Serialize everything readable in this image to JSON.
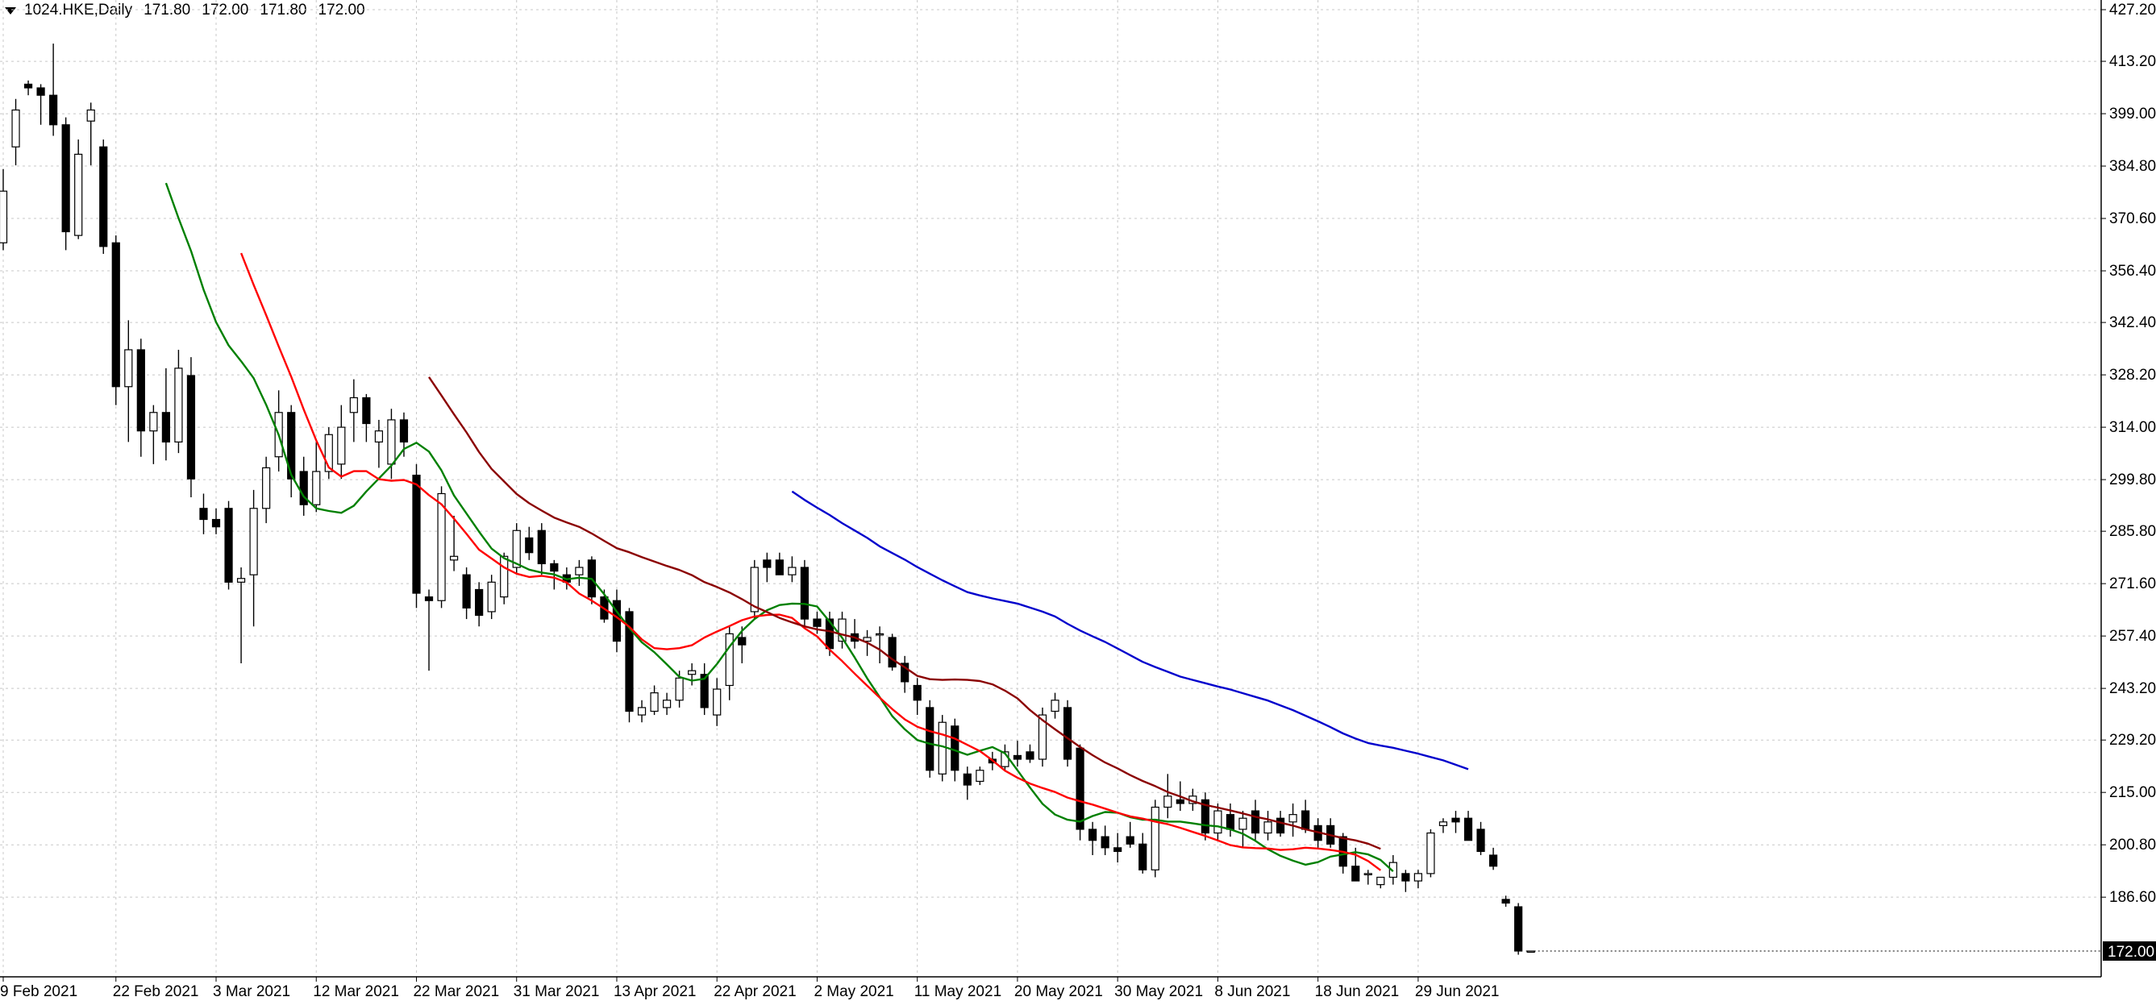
{
  "header": {
    "symbol": "1024.HKE,Daily",
    "open": "171.80",
    "high": "172.00",
    "low": "171.80",
    "close": "172.00"
  },
  "colors": {
    "bull_body": "#ffffff",
    "bear_body": "#000000",
    "candle_outline": "#000000",
    "grid": "#c8c8c8",
    "ma_green": "#008000",
    "ma_red": "#ff0000",
    "ma_darkred": "#8b0000",
    "ma_blue": "#0000cc",
    "price_badge_bg": "#000000",
    "price_badge_text": "#ffffff"
  },
  "chart_data": {
    "type": "candlestick",
    "y_range": [
      165.0,
      427.2
    ],
    "y_ticks": [
      "427.20",
      "413.20",
      "399.00",
      "384.80",
      "370.60",
      "356.40",
      "342.40",
      "328.20",
      "314.00",
      "299.80",
      "285.80",
      "271.60",
      "257.40",
      "243.20",
      "229.20",
      "215.00",
      "200.80",
      "186.60"
    ],
    "x_tick_labels": [
      {
        "index": 0,
        "label": "9 Feb 2021"
      },
      {
        "index": 9,
        "label": "22 Feb 2021"
      },
      {
        "index": 17,
        "label": "3 Mar 2021"
      },
      {
        "index": 25,
        "label": "12 Mar 2021"
      },
      {
        "index": 33,
        "label": "22 Mar 2021"
      },
      {
        "index": 41,
        "label": "31 Mar 2021"
      },
      {
        "index": 49,
        "label": "13 Apr 2021"
      },
      {
        "index": 57,
        "label": "22 Apr 2021"
      },
      {
        "index": 65,
        "label": "2 May 2021"
      },
      {
        "index": 73,
        "label": "11 May 2021"
      },
      {
        "index": 81,
        "label": "20 May 2021"
      },
      {
        "index": 89,
        "label": "30 May 2021"
      },
      {
        "index": 97,
        "label": "8 Jun 2021"
      },
      {
        "index": 105,
        "label": "18 Jun 2021"
      },
      {
        "index": 113,
        "label": "29 Jun 2021"
      }
    ],
    "last_price": "172.00",
    "last_price_value": 172.0,
    "candles": [
      [
        364.0,
        384.0,
        362.0,
        378.0
      ],
      [
        390.0,
        403.0,
        385.0,
        400.0
      ],
      [
        407.0,
        408.0,
        404.0,
        406.0
      ],
      [
        406.0,
        407.0,
        396.0,
        404.0
      ],
      [
        404.0,
        418.0,
        393.0,
        396.0
      ],
      [
        396.0,
        398.0,
        362.0,
        367.0
      ],
      [
        366.0,
        392.0,
        365.0,
        388.0
      ],
      [
        397.0,
        402.0,
        385.0,
        400.0
      ],
      [
        390.0,
        392.0,
        361.0,
        363.0
      ],
      [
        364.0,
        366.0,
        320.0,
        325.0
      ],
      [
        325.0,
        343.0,
        310.0,
        335.0
      ],
      [
        335.0,
        338.0,
        306.0,
        313.0
      ],
      [
        313.0,
        320.0,
        304.0,
        318.0
      ],
      [
        318.0,
        330.0,
        305.0,
        310.0
      ],
      [
        310.0,
        335.0,
        307.0,
        330.0
      ],
      [
        328.0,
        333.0,
        295.0,
        300.0
      ],
      [
        292.0,
        296.0,
        285.0,
        289.0
      ],
      [
        289.0,
        292.0,
        285.0,
        287.0
      ],
      [
        292.0,
        294.0,
        270.0,
        272.0
      ],
      [
        272.0,
        276.0,
        250.0,
        273.0
      ],
      [
        274.0,
        297.0,
        260.0,
        292.0
      ],
      [
        292.0,
        306.0,
        288.0,
        303.0
      ],
      [
        306.0,
        324.0,
        302.0,
        318.0
      ],
      [
        318.0,
        320.0,
        295.0,
        300.0
      ],
      [
        302.0,
        306.0,
        290.0,
        293.0
      ],
      [
        293.0,
        310.0,
        291.0,
        302.0
      ],
      [
        302.0,
        314.0,
        300.0,
        312.0
      ],
      [
        304.0,
        320.0,
        300.0,
        314.0
      ],
      [
        318.0,
        327.0,
        310.0,
        322.0
      ],
      [
        322.0,
        323.0,
        310.0,
        315.0
      ],
      [
        310.0,
        316.0,
        303.0,
        313.0
      ],
      [
        304.0,
        319.0,
        300.0,
        316.0
      ],
      [
        316.0,
        318.0,
        306.0,
        310.0
      ],
      [
        301.0,
        304.0,
        265.0,
        269.0
      ],
      [
        268.0,
        270.0,
        248.0,
        267.0
      ],
      [
        267.0,
        298.0,
        265.0,
        296.0
      ],
      [
        278.0,
        290.0,
        275.0,
        279.0
      ],
      [
        274.0,
        276.0,
        262.0,
        265.0
      ],
      [
        270.0,
        272.0,
        260.0,
        263.0
      ],
      [
        264.0,
        274.0,
        262.0,
        272.0
      ],
      [
        268.0,
        280.0,
        266.0,
        279.0
      ],
      [
        276.0,
        288.0,
        274.0,
        286.0
      ],
      [
        284.0,
        287.0,
        278.0,
        280.0
      ],
      [
        286.0,
        288.0,
        274.0,
        277.0
      ],
      [
        277.0,
        278.0,
        270.0,
        275.0
      ],
      [
        274.0,
        276.0,
        270.0,
        272.0
      ],
      [
        274.0,
        278.0,
        271.0,
        276.0
      ],
      [
        278.0,
        279.0,
        266.0,
        268.0
      ],
      [
        268.0,
        270.0,
        261.0,
        262.0
      ],
      [
        267.0,
        270.0,
        253.0,
        256.0
      ],
      [
        264.0,
        265.0,
        234.0,
        237.0
      ],
      [
        236.0,
        240.0,
        234.0,
        238.0
      ],
      [
        237.0,
        244.0,
        236.0,
        242.0
      ],
      [
        238.0,
        242.0,
        236.0,
        240.0
      ],
      [
        240.0,
        248.0,
        238.0,
        246.0
      ],
      [
        247.0,
        250.0,
        244.0,
        248.0
      ],
      [
        247.0,
        250.0,
        236.0,
        238.0
      ],
      [
        236.0,
        246.0,
        233.0,
        243.0
      ],
      [
        244.0,
        260.0,
        240.0,
        258.0
      ],
      [
        257.0,
        260.0,
        250.0,
        255.0
      ],
      [
        264.0,
        278.0,
        262.0,
        276.0
      ],
      [
        278.0,
        280.0,
        272.0,
        276.0
      ],
      [
        278.0,
        280.0,
        274.0,
        274.0
      ],
      [
        274.0,
        279.0,
        272.0,
        276.0
      ],
      [
        276.0,
        278.0,
        260.0,
        262.0
      ],
      [
        262.0,
        264.0,
        258.0,
        260.0
      ],
      [
        262.0,
        264.0,
        252.0,
        254.0
      ],
      [
        256.0,
        264.0,
        254.0,
        262.0
      ],
      [
        258.0,
        262.0,
        254.0,
        256.0
      ],
      [
        256.0,
        259.0,
        252.0,
        257.0
      ],
      [
        258.0,
        260.0,
        250.0,
        258.0
      ],
      [
        257.0,
        258.0,
        248.0,
        249.0
      ],
      [
        250.0,
        252.0,
        242.0,
        245.0
      ],
      [
        244.0,
        246.0,
        236.0,
        240.0
      ],
      [
        238.0,
        240.0,
        219.0,
        221.0
      ],
      [
        220.0,
        236.0,
        218.0,
        234.0
      ],
      [
        233.0,
        235.0,
        218.0,
        221.0
      ],
      [
        220.0,
        222.0,
        213.0,
        217.0
      ],
      [
        218.0,
        222.0,
        217.0,
        221.0
      ],
      [
        224.0,
        226.0,
        221.0,
        223.0
      ],
      [
        222.0,
        228.0,
        221.0,
        226.0
      ],
      [
        225.0,
        229.0,
        222.0,
        224.0
      ],
      [
        226.0,
        228.0,
        223.0,
        224.0
      ],
      [
        224.0,
        238.0,
        222.0,
        236.0
      ],
      [
        237.0,
        242.0,
        235.0,
        240.0
      ],
      [
        238.0,
        240.0,
        222.0,
        224.0
      ],
      [
        227.0,
        228.0,
        202.0,
        205.0
      ],
      [
        205.0,
        207.0,
        198.0,
        202.0
      ],
      [
        203.0,
        206.0,
        198.0,
        200.0
      ],
      [
        200.0,
        204.0,
        196.0,
        199.0
      ],
      [
        203.0,
        207.0,
        200.0,
        201.0
      ],
      [
        201.0,
        204.0,
        193.0,
        194.0
      ],
      [
        194.0,
        213.0,
        192.0,
        211.0
      ],
      [
        211.0,
        220.0,
        208.0,
        214.0
      ],
      [
        213.0,
        218.0,
        210.0,
        212.0
      ],
      [
        212.0,
        216.0,
        210.0,
        214.0
      ],
      [
        213.0,
        215.0,
        202.0,
        204.0
      ],
      [
        204.0,
        212.0,
        202.0,
        210.0
      ],
      [
        209.0,
        212.0,
        203.0,
        205.0
      ],
      [
        205.0,
        210.0,
        200.0,
        208.0
      ],
      [
        210.0,
        213.0,
        202.0,
        204.0
      ],
      [
        204.0,
        210.0,
        202.0,
        207.0
      ],
      [
        208.0,
        210.0,
        203.0,
        204.0
      ],
      [
        207.0,
        212.0,
        203.0,
        209.0
      ],
      [
        210.0,
        213.0,
        204.0,
        205.0
      ],
      [
        206.0,
        208.0,
        200.0,
        202.0
      ],
      [
        206.0,
        208.0,
        200.0,
        201.0
      ],
      [
        203.0,
        204.0,
        193.0,
        195.0
      ],
      [
        195.0,
        200.0,
        191.0,
        191.0
      ],
      [
        193.0,
        194.0,
        190.0,
        193.0
      ],
      [
        190.0,
        192.0,
        189.0,
        192.0
      ],
      [
        192.0,
        198.0,
        190.0,
        196.0
      ],
      [
        193.0,
        194.0,
        188.0,
        191.0
      ],
      [
        191.0,
        194.0,
        189.0,
        193.0
      ],
      [
        193.0,
        205.0,
        192.0,
        204.0
      ],
      [
        206.0,
        208.0,
        204.0,
        207.0
      ],
      [
        208.0,
        210.0,
        204.0,
        207.0
      ],
      [
        208.0,
        210.0,
        202.0,
        202.0
      ],
      [
        205.0,
        207.0,
        198.0,
        199.0
      ],
      [
        198.0,
        200.0,
        194.0,
        195.0
      ],
      [
        186.0,
        187.0,
        184.0,
        185.0
      ],
      [
        184.0,
        185.0,
        171.0,
        172.0
      ],
      [
        171.8,
        172.0,
        171.8,
        172.0
      ]
    ],
    "series": [
      {
        "color": "#008000",
        "start_index": 13,
        "values": [
          380.2,
          370.7,
          361.8,
          351.3,
          342.5,
          336.2,
          331.9,
          327.3,
          320.1,
          311.9,
          301.1,
          295.2,
          292.0,
          291.3,
          290.8,
          292.7,
          296.6,
          300.1,
          303.6,
          308.1,
          309.8,
          307.4,
          302.3,
          295.5,
          290.6,
          285.7,
          281.1,
          278.5,
          277.0,
          275.4,
          274.6,
          274.1,
          272.8,
          273.2,
          272.9,
          268.7,
          264.0,
          259.6,
          255.7,
          253.0,
          249.7,
          246.3,
          245.3,
          245.8,
          249.8,
          254.5,
          258.8,
          262.0,
          264.4,
          265.8,
          266.2,
          266.1,
          265.4,
          261.3,
          256.9,
          251.6,
          245.9,
          240.8,
          235.7,
          232.1,
          229.2,
          228.2,
          227.5,
          226.4,
          225.2,
          226.3,
          227.3,
          225.6,
          221.0,
          216.3,
          211.9,
          209.0,
          207.6,
          207.1,
          208.6,
          209.7,
          209.5,
          208.3,
          207.6,
          207.6,
          207.1,
          207.1,
          206.6,
          206.1,
          205.8,
          205.0,
          203.8,
          201.9,
          199.6,
          197.8,
          196.5,
          195.4,
          196.1,
          197.6,
          198.2,
          198.8,
          198.2,
          196.7,
          193.6
        ]
      },
      {
        "color": "#ff0000",
        "start_index": 19,
        "values": [
          361.2,
          352.6,
          344.4,
          335.9,
          327.7,
          318.8,
          310.4,
          303.1,
          300.6,
          302.1,
          302.1,
          299.9,
          299.5,
          299.7,
          298.5,
          295.6,
          293.1,
          289.2,
          285.1,
          280.8,
          278.4,
          276.0,
          274.3,
          273.4,
          273.7,
          273.2,
          271.9,
          268.9,
          267.0,
          264.8,
          262.5,
          259.9,
          256.5,
          254.1,
          253.8,
          254.1,
          254.9,
          257.0,
          258.6,
          260.1,
          261.7,
          262.7,
          263.1,
          263.2,
          262.3,
          259.5,
          257.3,
          253.7,
          250.6,
          247.2,
          243.9,
          240.7,
          237.6,
          234.8,
          232.8,
          231.6,
          230.7,
          229.6,
          227.9,
          226.2,
          223.7,
          220.9,
          219.0,
          217.4,
          216.2,
          215.1,
          213.6,
          212.6,
          211.7,
          210.6,
          209.5,
          208.5,
          207.9,
          207.1,
          206.4,
          205.4,
          204.3,
          203.2,
          202.0,
          200.7,
          200.1,
          199.9,
          199.8,
          199.4,
          199.6,
          200.0,
          199.8,
          199.4,
          198.9,
          198.1,
          196.4,
          193.9
        ]
      },
      {
        "color": "#8b0000",
        "start_index": 34,
        "values": [
          327.6,
          322.6,
          317.5,
          312.6,
          307.3,
          302.7,
          299.3,
          295.9,
          293.4,
          291.4,
          289.5,
          288.2,
          287.0,
          285.2,
          283.2,
          281.2,
          280.1,
          278.8,
          277.6,
          276.4,
          275.3,
          273.9,
          272.0,
          270.7,
          269.2,
          267.4,
          265.4,
          263.9,
          262.3,
          261.1,
          260.0,
          259.2,
          258.7,
          257.8,
          257.0,
          255.6,
          253.7,
          251.1,
          248.9,
          246.6,
          245.7,
          245.5,
          245.6,
          245.5,
          245.2,
          244.3,
          242.6,
          240.5,
          237.3,
          234.6,
          232.1,
          229.7,
          227.3,
          225.1,
          223.1,
          221.5,
          219.7,
          218.1,
          216.7,
          215.1,
          213.9,
          212.6,
          211.6,
          210.9,
          210.1,
          209.3,
          208.4,
          207.7,
          206.8,
          206.0,
          205.0,
          204.2,
          203.4,
          202.6,
          202.0,
          201.1,
          199.7
        ]
      },
      {
        "color": "#0000cc",
        "start_index": 63,
        "values": [
          296.6,
          294.3,
          292.2,
          290.2,
          288.0,
          286.0,
          284.0,
          281.7,
          279.9,
          278.1,
          276.1,
          274.3,
          272.5,
          270.9,
          269.3,
          268.4,
          267.6,
          266.9,
          266.2,
          265.1,
          264.0,
          262.7,
          260.7,
          258.9,
          257.3,
          255.8,
          254.0,
          252.2,
          250.4,
          249.0,
          247.7,
          246.4,
          245.5,
          244.6,
          243.7,
          242.9,
          241.9,
          240.9,
          239.9,
          238.6,
          237.3,
          235.8,
          234.3,
          232.7,
          231.0,
          229.6,
          228.4,
          227.7,
          227.1,
          226.3,
          225.5,
          224.6,
          223.7,
          222.5,
          221.3
        ]
      }
    ]
  }
}
